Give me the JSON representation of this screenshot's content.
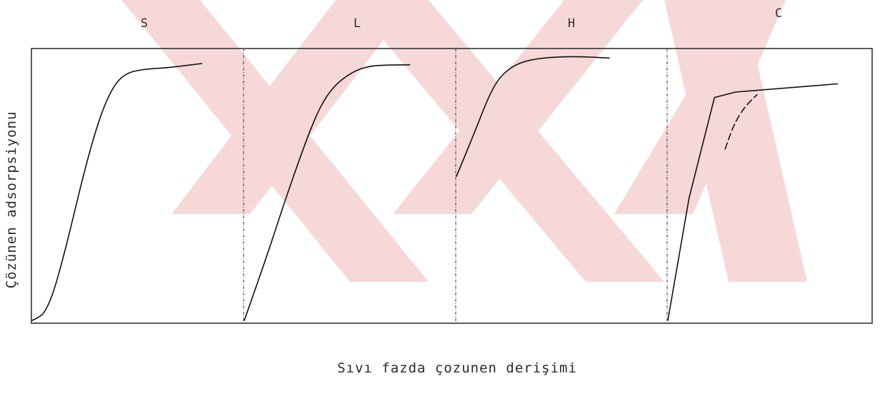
{
  "chart_data": {
    "type": "line",
    "xlabel": "Sıvı fazda çozunen derişimi",
    "ylabel": "Çözünen adsorpsiyonu",
    "colors": {
      "line": "#111111",
      "frame": "#333333",
      "watermark": "#f6d2d2"
    },
    "panels": [
      {
        "label": "S",
        "series": [
          {
            "style": "solid",
            "x": [
              0,
              0.03,
              0.06,
              0.1,
              0.15,
              0.2,
              0.25,
              0.3,
              0.35,
              0.4,
              0.45,
              0.5,
              0.55,
              0.65,
              0.8
            ],
            "y": [
              0,
              0.01,
              0.03,
              0.1,
              0.24,
              0.4,
              0.56,
              0.7,
              0.81,
              0.88,
              0.91,
              0.92,
              0.925,
              0.93,
              0.945
            ]
          }
        ]
      },
      {
        "label": "L",
        "series": [
          {
            "style": "solid",
            "x": [
              0,
              0.1,
              0.2,
              0.3,
              0.36,
              0.42,
              0.5,
              0.58,
              0.68,
              0.78
            ],
            "y": [
              0,
              0.22,
              0.46,
              0.68,
              0.79,
              0.86,
              0.91,
              0.935,
              0.94,
              0.94
            ]
          }
        ]
      },
      {
        "label": "H",
        "series": [
          {
            "style": "solid",
            "x": [
              0,
              0.08,
              0.16,
              0.22,
              0.3,
              0.4,
              0.5,
              0.6,
              0.72
            ],
            "y": [
              0.53,
              0.68,
              0.84,
              0.91,
              0.95,
              0.965,
              0.97,
              0.97,
              0.965
            ]
          }
        ]
      },
      {
        "label": "C",
        "series": [
          {
            "style": "solid",
            "x": [
              0,
              0.1,
              0.22,
              0.32,
              0.8
            ],
            "y": [
              0,
              0.45,
              0.82,
              0.84,
              0.87
            ]
          },
          {
            "style": "dashed",
            "x": [
              0.27,
              0.3,
              0.34,
              0.38,
              0.42
            ],
            "y": [
              0.63,
              0.7,
              0.76,
              0.8,
              0.83
            ]
          }
        ]
      }
    ]
  }
}
